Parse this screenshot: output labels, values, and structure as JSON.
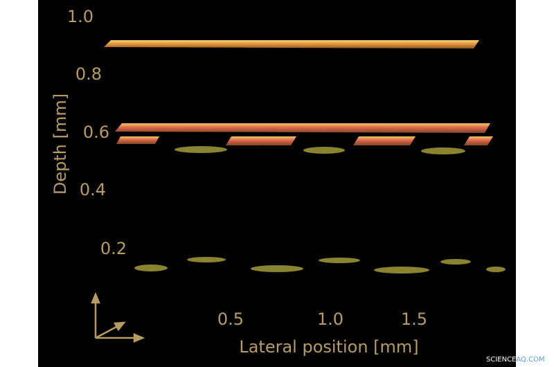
{
  "axes": {
    "y_label": "Depth [mm]",
    "y_ticks": [
      "1.0",
      "0.8",
      "0.6",
      "0.4",
      "0.2"
    ],
    "x_label": "Lateral position [mm]",
    "x_ticks": [
      "0.5",
      "1.0",
      "1.5"
    ]
  },
  "watermark": {
    "part1": "SCIENCE",
    "part2": "AQ.COM"
  }
}
